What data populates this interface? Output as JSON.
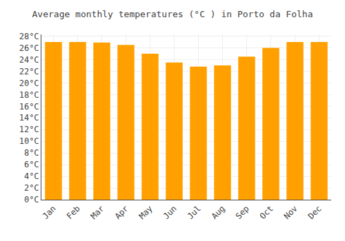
{
  "chart_data": {
    "type": "bar",
    "title": "Average monthly temperatures (°C ) in Porto da Folha",
    "categories": [
      "Jan",
      "Feb",
      "Mar",
      "Apr",
      "May",
      "Jun",
      "Jul",
      "Aug",
      "Sep",
      "Oct",
      "Nov",
      "Dec"
    ],
    "values": [
      27.0,
      27.0,
      26.9,
      26.5,
      25.0,
      23.5,
      22.8,
      23.0,
      24.5,
      26.0,
      27.0,
      27.0
    ],
    "color": "#FFA000",
    "ylim": [
      0,
      28.3
    ],
    "yticks": [
      {
        "value": 0,
        "label": "0°C"
      },
      {
        "value": 2,
        "label": "2°C"
      },
      {
        "value": 4,
        "label": "4°C"
      },
      {
        "value": 6,
        "label": "6°C"
      },
      {
        "value": 8,
        "label": "8°C"
      },
      {
        "value": 10,
        "label": "10°C"
      },
      {
        "value": 12,
        "label": "12°C"
      },
      {
        "value": 14,
        "label": "14°C"
      },
      {
        "value": 16,
        "label": "16°C"
      },
      {
        "value": 18,
        "label": "18°C"
      },
      {
        "value": 20,
        "label": "20°C"
      },
      {
        "value": 22,
        "label": "22°C"
      },
      {
        "value": 24,
        "label": "24°C"
      },
      {
        "value": 26,
        "label": "26°C"
      },
      {
        "value": 28,
        "label": "28°C"
      }
    ],
    "grid": true
  }
}
